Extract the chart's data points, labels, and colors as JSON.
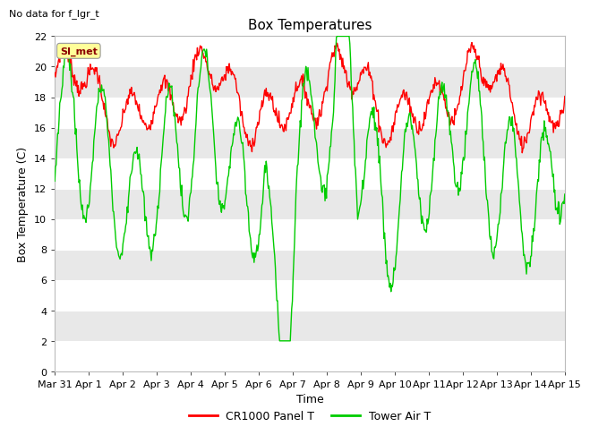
{
  "title": "Box Temperatures",
  "no_data_label": "No data for f_lgr_t",
  "si_met_label": "SI_met",
  "xlabel": "Time",
  "ylabel": "Box Temperature (C)",
  "ylim": [
    0,
    22
  ],
  "yticks": [
    0,
    2,
    4,
    6,
    8,
    10,
    12,
    14,
    16,
    18,
    20,
    22
  ],
  "xtick_labels": [
    "Mar 31",
    "Apr 1",
    "Apr 2",
    "Apr 3",
    "Apr 4",
    "Apr 5",
    "Apr 6",
    "Apr 7",
    "Apr 8",
    "Apr 9",
    "Apr 10",
    "Apr 11",
    "Apr 12",
    "Apr 13",
    "Apr 14",
    "Apr 15"
  ],
  "legend_entries": [
    "CR1000 Panel T",
    "Tower Air T"
  ],
  "line_colors": [
    "#ff0000",
    "#00cc00"
  ],
  "background_color": "#ffffff",
  "stripe_light": "#ffffff",
  "stripe_dark": "#e8e8e8",
  "title_fontsize": 11,
  "axis_fontsize": 9,
  "tick_fontsize": 8
}
